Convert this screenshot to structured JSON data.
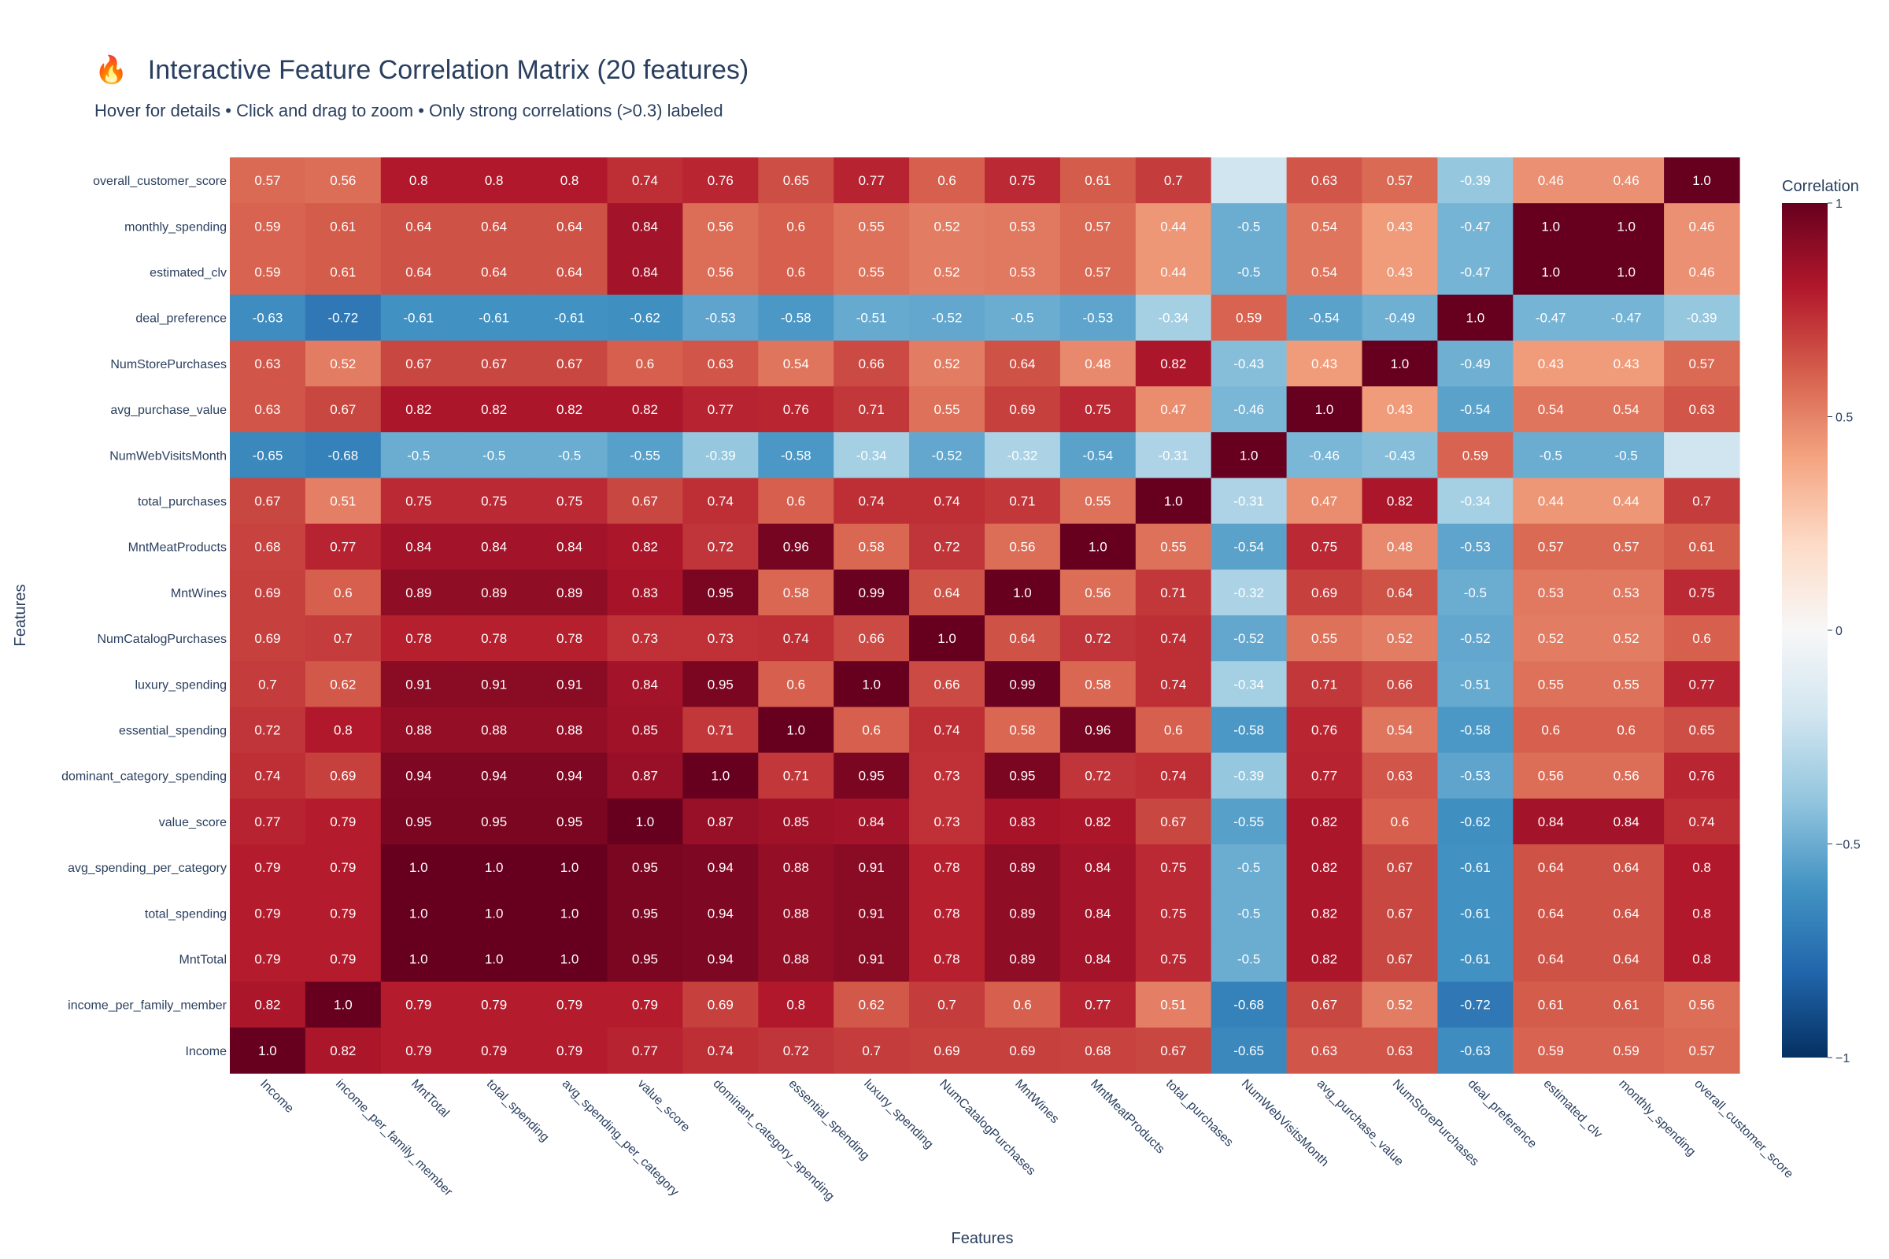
{
  "chart_data": {
    "type": "heatmap",
    "title_icon": "🔥",
    "title": "Interactive Feature Correlation Matrix (20 features)",
    "subtitle": "Hover for details • Click and drag to zoom • Only strong correlations (>0.3) labeled",
    "xlabel": "Features",
    "ylabel": "Features",
    "colorbar_title": "Correlation",
    "colorbar_ticks": [
      "1",
      "0.5",
      "0",
      "−0.5",
      "−1"
    ],
    "colorbar_tick_values": [
      1,
      0.5,
      0,
      -0.5,
      -1
    ],
    "zrange": [
      -1,
      1
    ],
    "colorscale": [
      "#053061",
      "#2166ac",
      "#4393c3",
      "#92c5de",
      "#d1e5f0",
      "#f7f7f7",
      "#fddbc7",
      "#f4a582",
      "#d6604d",
      "#b2182b",
      "#67001f"
    ],
    "x_labels": [
      "Income",
      "income_per_family_member",
      "MntTotal",
      "total_spending",
      "avg_spending_per_category",
      "value_score",
      "dominant_category_spending",
      "essential_spending",
      "luxury_spending",
      "NumCatalogPurchases",
      "MntWines",
      "MntMeatProducts",
      "total_purchases",
      "NumWebVisitsMonth",
      "avg_purchase_value",
      "NumStorePurchases",
      "deal_preference",
      "estimated_clv",
      "monthly_spending",
      "overall_customer_score"
    ],
    "y_labels": [
      "overall_customer_score",
      "monthly_spending",
      "estimated_clv",
      "deal_preference",
      "NumStorePurchases",
      "avg_purchase_value",
      "NumWebVisitsMonth",
      "total_purchases",
      "MntMeatProducts",
      "MntWines",
      "NumCatalogPurchases",
      "luxury_spending",
      "essential_spending",
      "dominant_category_spending",
      "value_score",
      "avg_spending_per_category",
      "total_spending",
      "MntTotal",
      "income_per_family_member",
      "Income"
    ],
    "label_threshold": 0.3,
    "z": [
      [
        0.57,
        0.56,
        0.8,
        0.8,
        0.8,
        0.74,
        0.76,
        0.65,
        0.77,
        0.6,
        0.75,
        0.61,
        0.7,
        -0.2,
        0.63,
        0.57,
        -0.39,
        0.46,
        0.46,
        1.0
      ],
      [
        0.59,
        0.61,
        0.64,
        0.64,
        0.64,
        0.84,
        0.56,
        0.6,
        0.55,
        0.52,
        0.53,
        0.57,
        0.44,
        -0.5,
        0.54,
        0.43,
        -0.47,
        1.0,
        1.0,
        0.46
      ],
      [
        0.59,
        0.61,
        0.64,
        0.64,
        0.64,
        0.84,
        0.56,
        0.6,
        0.55,
        0.52,
        0.53,
        0.57,
        0.44,
        -0.5,
        0.54,
        0.43,
        -0.47,
        1.0,
        1.0,
        0.46
      ],
      [
        -0.63,
        -0.72,
        -0.61,
        -0.61,
        -0.61,
        -0.62,
        -0.53,
        -0.58,
        -0.51,
        -0.52,
        -0.5,
        -0.53,
        -0.34,
        0.59,
        -0.54,
        -0.49,
        1.0,
        -0.47,
        -0.47,
        -0.39
      ],
      [
        0.63,
        0.52,
        0.67,
        0.67,
        0.67,
        0.6,
        0.63,
        0.54,
        0.66,
        0.52,
        0.64,
        0.48,
        0.82,
        -0.43,
        0.43,
        1.0,
        -0.49,
        0.43,
        0.43,
        0.57
      ],
      [
        0.63,
        0.67,
        0.82,
        0.82,
        0.82,
        0.82,
        0.77,
        0.76,
        0.71,
        0.55,
        0.69,
        0.75,
        0.47,
        -0.46,
        1.0,
        0.43,
        -0.54,
        0.54,
        0.54,
        0.63
      ],
      [
        -0.65,
        -0.68,
        -0.5,
        -0.5,
        -0.5,
        -0.55,
        -0.39,
        -0.58,
        -0.34,
        -0.52,
        -0.32,
        -0.54,
        -0.31,
        1.0,
        -0.46,
        -0.43,
        0.59,
        -0.5,
        -0.5,
        -0.2
      ],
      [
        0.67,
        0.51,
        0.75,
        0.75,
        0.75,
        0.67,
        0.74,
        0.6,
        0.74,
        0.74,
        0.71,
        0.55,
        1.0,
        -0.31,
        0.47,
        0.82,
        -0.34,
        0.44,
        0.44,
        0.7
      ],
      [
        0.68,
        0.77,
        0.84,
        0.84,
        0.84,
        0.82,
        0.72,
        0.96,
        0.58,
        0.72,
        0.56,
        1.0,
        0.55,
        -0.54,
        0.75,
        0.48,
        -0.53,
        0.57,
        0.57,
        0.61
      ],
      [
        0.69,
        0.6,
        0.89,
        0.89,
        0.89,
        0.83,
        0.95,
        0.58,
        0.99,
        0.64,
        1.0,
        0.56,
        0.71,
        -0.32,
        0.69,
        0.64,
        -0.5,
        0.53,
        0.53,
        0.75
      ],
      [
        0.69,
        0.7,
        0.78,
        0.78,
        0.78,
        0.73,
        0.73,
        0.74,
        0.66,
        1.0,
        0.64,
        0.72,
        0.74,
        -0.52,
        0.55,
        0.52,
        -0.52,
        0.52,
        0.52,
        0.6
      ],
      [
        0.7,
        0.62,
        0.91,
        0.91,
        0.91,
        0.84,
        0.95,
        0.6,
        1.0,
        0.66,
        0.99,
        0.58,
        0.74,
        -0.34,
        0.71,
        0.66,
        -0.51,
        0.55,
        0.55,
        0.77
      ],
      [
        0.72,
        0.8,
        0.88,
        0.88,
        0.88,
        0.85,
        0.71,
        1.0,
        0.6,
        0.74,
        0.58,
        0.96,
        0.6,
        -0.58,
        0.76,
        0.54,
        -0.58,
        0.6,
        0.6,
        0.65
      ],
      [
        0.74,
        0.69,
        0.94,
        0.94,
        0.94,
        0.87,
        1.0,
        0.71,
        0.95,
        0.73,
        0.95,
        0.72,
        0.74,
        -0.39,
        0.77,
        0.63,
        -0.53,
        0.56,
        0.56,
        0.76
      ],
      [
        0.77,
        0.79,
        0.95,
        0.95,
        0.95,
        1.0,
        0.87,
        0.85,
        0.84,
        0.73,
        0.83,
        0.82,
        0.67,
        -0.55,
        0.82,
        0.6,
        -0.62,
        0.84,
        0.84,
        0.74
      ],
      [
        0.79,
        0.79,
        1.0,
        1.0,
        1.0,
        0.95,
        0.94,
        0.88,
        0.91,
        0.78,
        0.89,
        0.84,
        0.75,
        -0.5,
        0.82,
        0.67,
        -0.61,
        0.64,
        0.64,
        0.8
      ],
      [
        0.79,
        0.79,
        1.0,
        1.0,
        1.0,
        0.95,
        0.94,
        0.88,
        0.91,
        0.78,
        0.89,
        0.84,
        0.75,
        -0.5,
        0.82,
        0.67,
        -0.61,
        0.64,
        0.64,
        0.8
      ],
      [
        0.79,
        0.79,
        1.0,
        1.0,
        1.0,
        0.95,
        0.94,
        0.88,
        0.91,
        0.78,
        0.89,
        0.84,
        0.75,
        -0.5,
        0.82,
        0.67,
        -0.61,
        0.64,
        0.64,
        0.8
      ],
      [
        0.82,
        1.0,
        0.79,
        0.79,
        0.79,
        0.79,
        0.69,
        0.8,
        0.62,
        0.7,
        0.6,
        0.77,
        0.51,
        -0.68,
        0.67,
        0.52,
        -0.72,
        0.61,
        0.61,
        0.56
      ],
      [
        1.0,
        0.82,
        0.79,
        0.79,
        0.79,
        0.77,
        0.74,
        0.72,
        0.7,
        0.69,
        0.69,
        0.68,
        0.67,
        -0.65,
        0.63,
        0.63,
        -0.63,
        0.59,
        0.59,
        0.57
      ]
    ]
  }
}
